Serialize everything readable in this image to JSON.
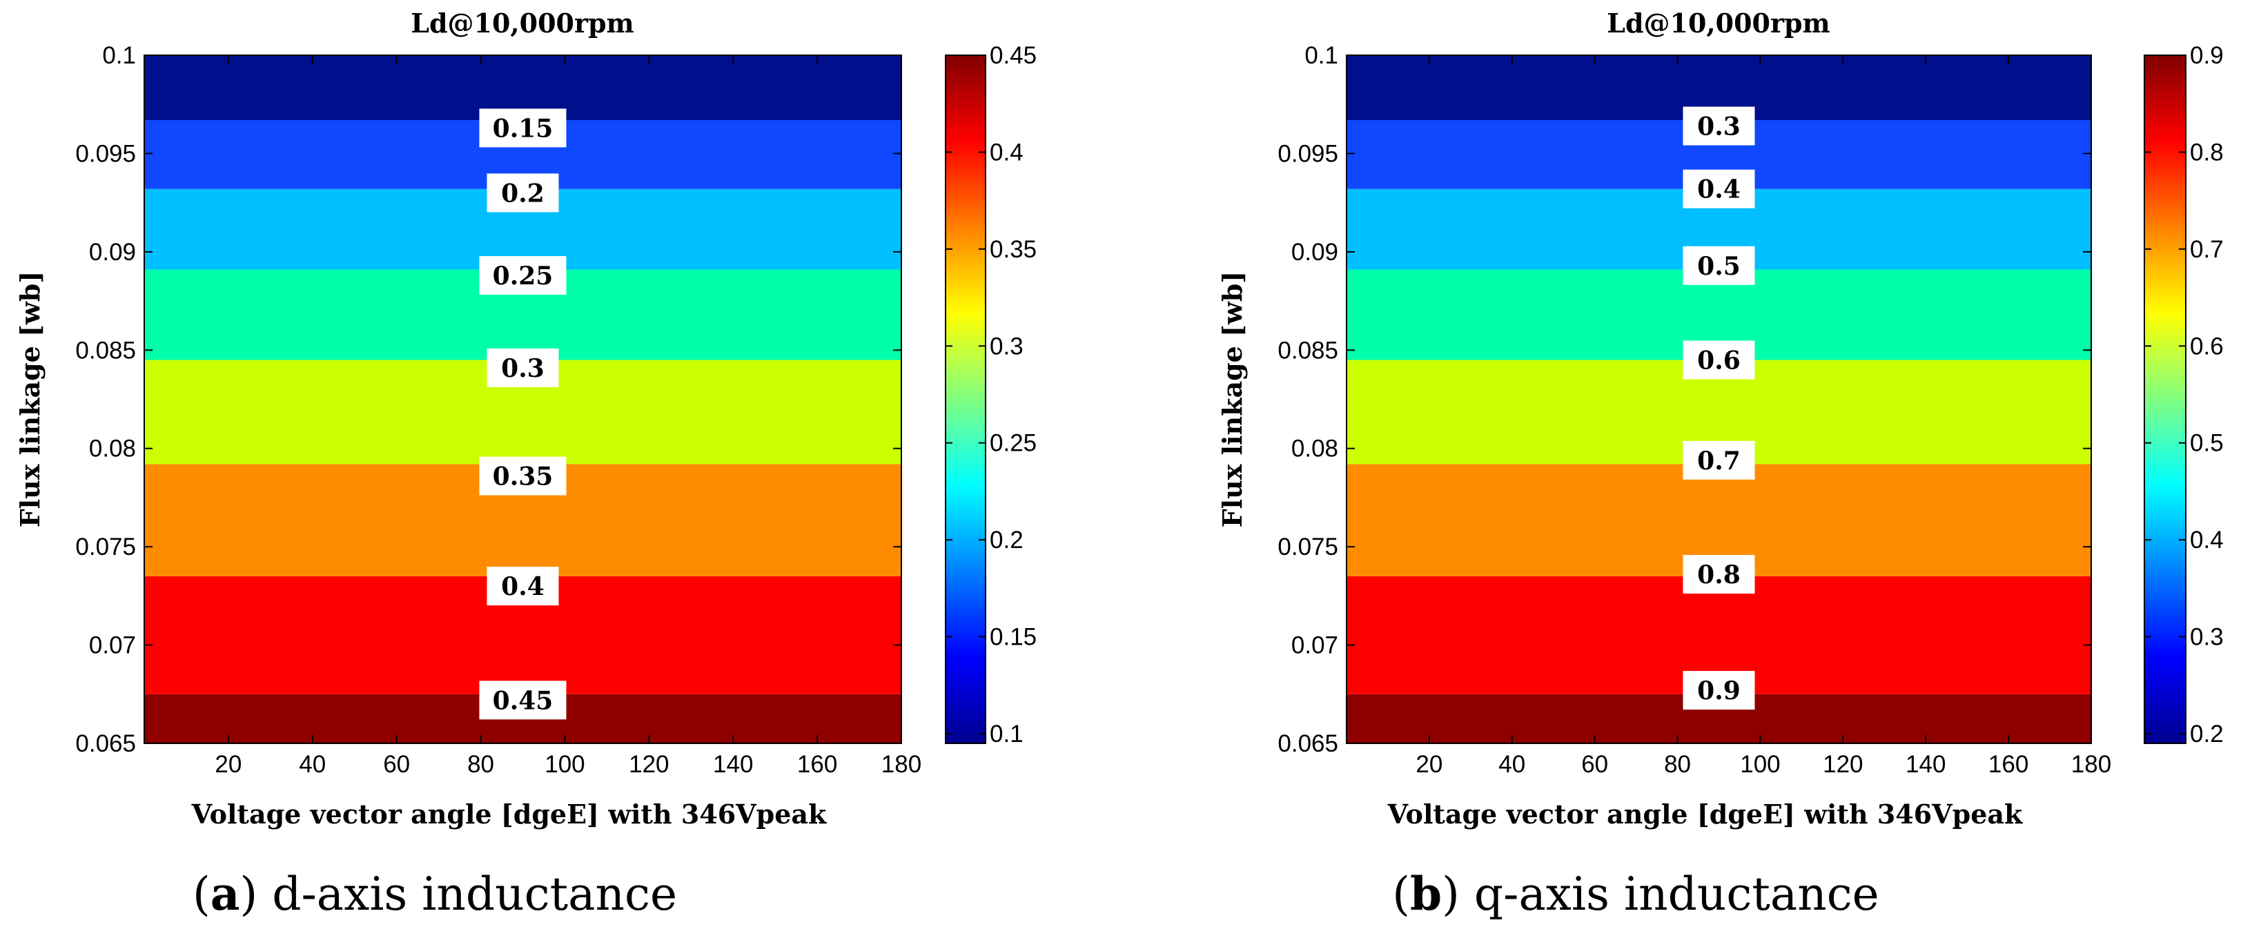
{
  "chart_data": [
    {
      "type": "heatmap",
      "panel": "a",
      "title": "Ld@10,000rpm",
      "xlabel": "Voltage vector angle [dgeE] with 346Vpeak",
      "ylabel": "Flux linkage [wb]",
      "xlim": [
        0,
        180
      ],
      "ylim": [
        0.065,
        0.1
      ],
      "x_ticks": [
        "20",
        "40",
        "60",
        "80",
        "100",
        "120",
        "140",
        "160",
        "180"
      ],
      "y_ticks": [
        "0.065",
        "0.07",
        "0.075",
        "0.08",
        "0.085",
        "0.09",
        "0.095",
        "0.1"
      ],
      "colorbar": {
        "range": [
          0.095,
          0.45
        ],
        "ticks": [
          "0.1",
          "0.15",
          "0.2",
          "0.25",
          "0.3",
          "0.35",
          "0.4",
          "0.45"
        ]
      },
      "bands": [
        {
          "y_from": 0.065,
          "y_to": 0.0675,
          "color": "#8e0000"
        },
        {
          "y_from": 0.0675,
          "y_to": 0.0735,
          "color": "#ff0000"
        },
        {
          "y_from": 0.0735,
          "y_to": 0.0792,
          "color": "#ff8c00"
        },
        {
          "y_from": 0.0792,
          "y_to": 0.0845,
          "color": "#ccff00"
        },
        {
          "y_from": 0.0845,
          "y_to": 0.0891,
          "color": "#00ffaa"
        },
        {
          "y_from": 0.0891,
          "y_to": 0.0932,
          "color": "#00bfff"
        },
        {
          "y_from": 0.0932,
          "y_to": 0.0967,
          "color": "#0f48ff"
        },
        {
          "y_from": 0.0967,
          "y_to": 0.1,
          "color": "#000f8c"
        }
      ],
      "contour_labels": [
        {
          "text": "0.15",
          "y": 0.0963
        },
        {
          "text": "0.2",
          "y": 0.093
        },
        {
          "text": "0.25",
          "y": 0.0888
        },
        {
          "text": "0.3",
          "y": 0.0841
        },
        {
          "text": "0.35",
          "y": 0.0786
        },
        {
          "text": "0.4",
          "y": 0.073
        },
        {
          "text": "0.45",
          "y": 0.0672
        }
      ],
      "caption_letter": "a",
      "caption_text": "d-axis inductance"
    },
    {
      "type": "heatmap",
      "panel": "b",
      "title": "Ld@10,000rpm",
      "xlabel": "Voltage vector angle [dgeE] with 346Vpeak",
      "ylabel": "Flux linkage [wb]",
      "xlim": [
        0,
        180
      ],
      "ylim": [
        0.065,
        0.1
      ],
      "x_ticks": [
        "20",
        "40",
        "60",
        "80",
        "100",
        "120",
        "140",
        "160",
        "180"
      ],
      "y_ticks": [
        "0.065",
        "0.07",
        "0.075",
        "0.08",
        "0.085",
        "0.09",
        "0.095",
        "0.1"
      ],
      "colorbar": {
        "range": [
          0.19,
          0.9
        ],
        "ticks": [
          "0.2",
          "0.3",
          "0.4",
          "0.5",
          "0.6",
          "0.7",
          "0.8",
          "0.9"
        ]
      },
      "bands": [
        {
          "y_from": 0.065,
          "y_to": 0.0675,
          "color": "#8e0000"
        },
        {
          "y_from": 0.0675,
          "y_to": 0.0735,
          "color": "#ff0000"
        },
        {
          "y_from": 0.0735,
          "y_to": 0.0792,
          "color": "#ff8c00"
        },
        {
          "y_from": 0.0792,
          "y_to": 0.0845,
          "color": "#ccff00"
        },
        {
          "y_from": 0.0845,
          "y_to": 0.0891,
          "color": "#00ffaa"
        },
        {
          "y_from": 0.0891,
          "y_to": 0.0932,
          "color": "#00bfff"
        },
        {
          "y_from": 0.0932,
          "y_to": 0.0967,
          "color": "#0f48ff"
        },
        {
          "y_from": 0.0967,
          "y_to": 0.1,
          "color": "#000f8c"
        }
      ],
      "contour_labels": [
        {
          "text": "0.3",
          "y": 0.0964
        },
        {
          "text": "0.4",
          "y": 0.0932
        },
        {
          "text": "0.5",
          "y": 0.0893
        },
        {
          "text": "0.6",
          "y": 0.0845
        },
        {
          "text": "0.7",
          "y": 0.0794
        },
        {
          "text": "0.8",
          "y": 0.0736
        },
        {
          "text": "0.9",
          "y": 0.0677
        }
      ],
      "caption_letter": "b",
      "caption_text": "q-axis inductance"
    }
  ],
  "colors": {
    "jet": [
      "#00008f",
      "#0000ff",
      "#0080ff",
      "#00ffff",
      "#80ff80",
      "#ffff00",
      "#ff8000",
      "#ff0000",
      "#800000"
    ]
  }
}
